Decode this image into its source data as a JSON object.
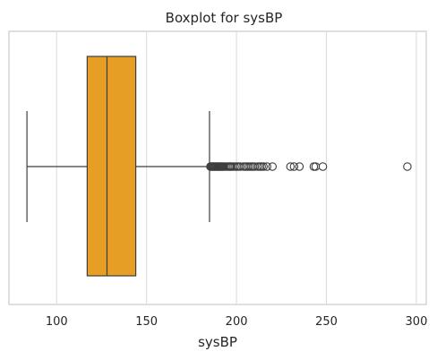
{
  "chart_data": {
    "type": "boxplot",
    "title": "Boxplot for sysBP",
    "xlabel": "sysBP",
    "ylabel": "",
    "orientation": "horizontal",
    "xlim": [
      73.5,
      305.5
    ],
    "xticks": [
      100,
      150,
      200,
      250,
      300
    ],
    "grid": true,
    "box_color": "#e69f24",
    "line_color": "#3d3d3d",
    "stats": {
      "whisker_low": 83.5,
      "q1": 117,
      "median": 128,
      "q3": 144,
      "whisker_high": 185
    },
    "outliers": [
      185.5,
      186,
      186.5,
      187,
      187.5,
      188,
      188.5,
      189,
      189.5,
      190,
      190.5,
      191,
      191.5,
      192,
      192.5,
      193,
      194,
      195,
      196,
      196.5,
      197,
      198,
      199,
      200,
      201,
      202,
      204,
      205,
      206,
      207,
      208,
      209,
      210,
      212,
      213,
      214,
      215,
      217,
      220,
      230,
      232,
      235,
      243,
      244,
      248,
      295
    ]
  }
}
